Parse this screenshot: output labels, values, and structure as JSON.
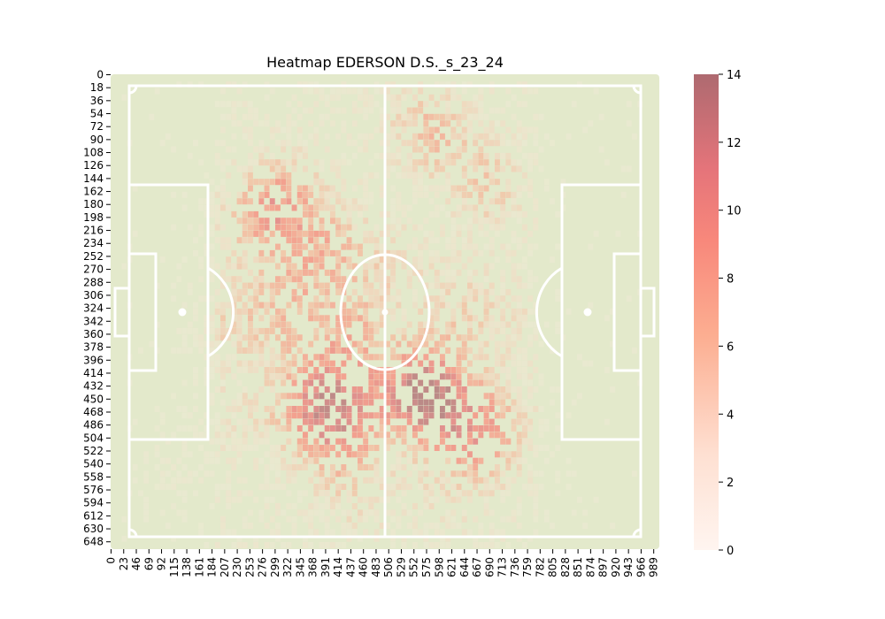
{
  "chart_data": {
    "type": "heatmap",
    "title": "Heatmap EDERSON D.S._s_23_24",
    "xlabel": "",
    "ylabel": "",
    "x_ticks": [
      0,
      23,
      46,
      69,
      92,
      115,
      138,
      161,
      184,
      207,
      230,
      253,
      276,
      299,
      322,
      345,
      368,
      391,
      414,
      437,
      460,
      483,
      506,
      529,
      552,
      575,
      598,
      621,
      644,
      667,
      690,
      713,
      736,
      759,
      782,
      805,
      828,
      851,
      874,
      897,
      920,
      943,
      966,
      989
    ],
    "y_ticks": [
      0,
      18,
      36,
      54,
      72,
      90,
      108,
      126,
      144,
      162,
      180,
      198,
      216,
      234,
      252,
      270,
      288,
      306,
      324,
      342,
      360,
      378,
      396,
      414,
      432,
      450,
      468,
      486,
      504,
      522,
      540,
      558,
      576,
      594,
      612,
      630,
      648
    ],
    "xlim": [
      0,
      1000
    ],
    "ylim": [
      0,
      660
    ],
    "colorbar": {
      "ticks": [
        0,
        2,
        4,
        6,
        8,
        10,
        12,
        14
      ],
      "range": [
        0,
        14
      ]
    },
    "pitch_background": "#e3e9cb",
    "colors": {
      "cmap_low": "#fff5f0",
      "cmap_mid1": "#fdd0bc",
      "cmap_mid2": "#fc9f81",
      "cmap_mid3": "#ef7a6e",
      "cmap_high": "#b06a70",
      "pitch_line": "#ffffff"
    },
    "hotspots": [
      {
        "x": 300,
        "y": 180,
        "value": 6
      },
      {
        "x": 322,
        "y": 162,
        "value": 7
      },
      {
        "x": 276,
        "y": 185,
        "value": 5
      },
      {
        "x": 392,
        "y": 250,
        "value": 6
      },
      {
        "x": 410,
        "y": 220,
        "value": 5
      },
      {
        "x": 215,
        "y": 342,
        "value": 7
      },
      {
        "x": 322,
        "y": 342,
        "value": 6
      },
      {
        "x": 440,
        "y": 360,
        "value": 6
      },
      {
        "x": 445,
        "y": 330,
        "value": 5
      },
      {
        "x": 455,
        "y": 432,
        "value": 7
      },
      {
        "x": 345,
        "y": 470,
        "value": 6
      },
      {
        "x": 368,
        "y": 460,
        "value": 6
      },
      {
        "x": 390,
        "y": 450,
        "value": 5
      },
      {
        "x": 414,
        "y": 480,
        "value": 6
      },
      {
        "x": 437,
        "y": 500,
        "value": 5
      },
      {
        "x": 550,
        "y": 432,
        "value": 8
      },
      {
        "x": 565,
        "y": 450,
        "value": 9
      },
      {
        "x": 590,
        "y": 470,
        "value": 7
      },
      {
        "x": 575,
        "y": 420,
        "value": 6
      },
      {
        "x": 640,
        "y": 470,
        "value": 6
      },
      {
        "x": 690,
        "y": 470,
        "value": 6
      },
      {
        "x": 690,
        "y": 504,
        "value": 5
      },
      {
        "x": 680,
        "y": 150,
        "value": 9
      },
      {
        "x": 598,
        "y": 80,
        "value": 7
      },
      {
        "x": 550,
        "y": 72,
        "value": 6
      },
      {
        "x": 610,
        "y": 360,
        "value": 5
      },
      {
        "x": 660,
        "y": 540,
        "value": 5
      },
      {
        "x": 414,
        "y": 550,
        "value": 5
      },
      {
        "x": 230,
        "y": 470,
        "value": 4
      },
      {
        "x": 520,
        "y": 260,
        "value": 5
      },
      {
        "x": 368,
        "y": 400,
        "value": 5
      },
      {
        "x": 330,
        "y": 260,
        "value": 4
      },
      {
        "x": 240,
        "y": 215,
        "value": 4
      },
      {
        "x": 720,
        "y": 340,
        "value": 4
      },
      {
        "x": 120,
        "y": 540,
        "value": 3
      },
      {
        "x": 300,
        "y": 300,
        "value": 4
      },
      {
        "x": 640,
        "y": 300,
        "value": 4
      },
      {
        "x": 470,
        "y": 600,
        "value": 3
      },
      {
        "x": 600,
        "y": 580,
        "value": 3
      }
    ]
  }
}
